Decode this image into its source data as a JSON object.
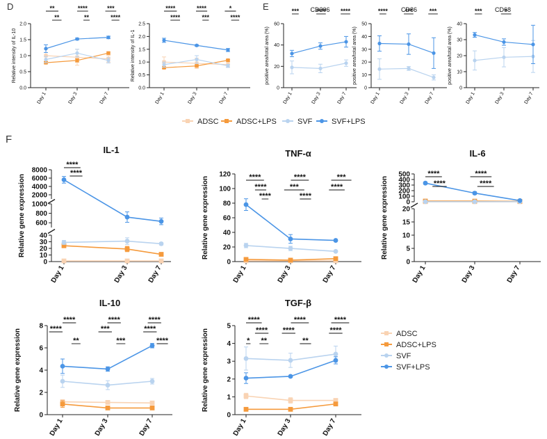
{
  "figure": {
    "panel_labels": {
      "D": "D",
      "E": "E",
      "F": "F"
    },
    "legend_top": {
      "items": [
        {
          "label": "ADSC",
          "color": "#f9d3b3"
        },
        {
          "label": "ADSC+LPS",
          "color": "#f59a3c"
        },
        {
          "label": "SVF",
          "color": "#b9d3ef"
        },
        {
          "label": "SVF+LPS",
          "color": "#4b95e6"
        }
      ]
    },
    "legend_right": {
      "items": [
        {
          "label": "ADSC",
          "color": "#f9d3b3"
        },
        {
          "label": "ADSC+LPS",
          "color": "#f59a3c"
        },
        {
          "label": "SVF",
          "color": "#b9d3ef"
        },
        {
          "label": "SVF+LPS",
          "color": "#4b95e6"
        }
      ]
    }
  },
  "chart_data": [
    {
      "id": "d1",
      "type": "line",
      "panel": "D",
      "title": "",
      "ylabel": "Relative intensity of IL-10",
      "xlabel": "",
      "categories": [
        "Day 1",
        "Day 3",
        "Day 7"
      ],
      "ylim": [
        0,
        2.0
      ],
      "yticks": [
        "0.0",
        "0.5",
        "1.0",
        "1.5",
        "2.0"
      ],
      "series": [
        {
          "name": "ADSC",
          "color": "#f9d3b3",
          "values": [
            1.0,
            0.95,
            0.9
          ],
          "errors": [
            0.2,
            0.25,
            0.1
          ]
        },
        {
          "name": "ADSC+LPS",
          "color": "#f59a3c",
          "values": [
            0.78,
            0.85,
            1.08
          ],
          "errors": [
            0.03,
            0.05,
            0.03
          ]
        },
        {
          "name": "SVF",
          "color": "#b9d3ef",
          "values": [
            0.88,
            1.08,
            0.85
          ],
          "errors": [
            0.1,
            0.12,
            0.08
          ]
        },
        {
          "name": "SVF+LPS",
          "color": "#4b95e6",
          "values": [
            1.22,
            1.52,
            1.57
          ],
          "errors": [
            0.12,
            0.03,
            0.04
          ]
        }
      ],
      "sig_labels": [
        "**",
        "**",
        "****",
        "**",
        "***",
        "****"
      ]
    },
    {
      "id": "d2",
      "type": "line",
      "panel": "D",
      "title": "",
      "ylabel": "Relative intensity of IL-1",
      "xlabel": "",
      "categories": [
        "Day 1",
        "Day 3",
        "Day 7"
      ],
      "ylim": [
        0,
        2.5
      ],
      "yticks": [
        "0.0",
        "0.5",
        "1.0",
        "1.5",
        "2.0",
        "2.5"
      ],
      "series": [
        {
          "name": "ADSC",
          "color": "#f9d3b3",
          "values": [
            1.0,
            0.95,
            0.9
          ],
          "errors": [
            0.2,
            0.2,
            0.1
          ]
        },
        {
          "name": "ADSC+LPS",
          "color": "#f59a3c",
          "values": [
            0.78,
            0.85,
            1.07
          ],
          "errors": [
            0.03,
            0.04,
            0.03
          ]
        },
        {
          "name": "SVF",
          "color": "#b9d3ef",
          "values": [
            0.9,
            1.1,
            0.85
          ],
          "errors": [
            0.1,
            0.15,
            0.06
          ]
        },
        {
          "name": "SVF+LPS",
          "color": "#4b95e6",
          "values": [
            1.85,
            1.65,
            1.47
          ],
          "errors": [
            0.08,
            0.03,
            0.06
          ]
        }
      ],
      "sig_labels": [
        "****",
        "****",
        "****",
        "***",
        "*",
        "****"
      ]
    },
    {
      "id": "e1",
      "type": "line",
      "panel": "E",
      "title": "CD206",
      "ylabel": "positive area/total area (%)",
      "xlabel": "",
      "categories": [
        "Day 1",
        "Day 3",
        "Day 7"
      ],
      "ylim": [
        0,
        60
      ],
      "yticks": [
        "0",
        "20",
        "40",
        "60"
      ],
      "series": [
        {
          "name": "SVF",
          "color": "#b9d3ef",
          "values": [
            19,
            18,
            23
          ],
          "errors": [
            6,
            4,
            3
          ]
        },
        {
          "name": "SVF+LPS",
          "color": "#4b95e6",
          "values": [
            32,
            39,
            43
          ],
          "errors": [
            3,
            3,
            5
          ]
        }
      ],
      "sig_labels": [
        "***",
        "****",
        "****"
      ]
    },
    {
      "id": "e2",
      "type": "line",
      "panel": "E",
      "title": "CD86",
      "ylabel": "positive area/total area (%)",
      "xlabel": "",
      "categories": [
        "Day 1",
        "Day 3",
        "Day 7"
      ],
      "ylim": [
        0,
        50
      ],
      "yticks": [
        "0",
        "10",
        "20",
        "30",
        "40",
        "50"
      ],
      "series": [
        {
          "name": "SVF",
          "color": "#b9d3ef",
          "values": [
            14.5,
            15,
            8
          ],
          "errors": [
            8,
            1.5,
            2
          ]
        },
        {
          "name": "SVF+LPS",
          "color": "#4b95e6",
          "values": [
            34.5,
            34,
            27
          ],
          "errors": [
            6,
            8,
            12
          ]
        }
      ],
      "sig_labels": [
        "****",
        "***",
        "***"
      ]
    },
    {
      "id": "e3",
      "type": "line",
      "panel": "E",
      "title": "CD68",
      "ylabel": "positive area/total area (%)",
      "xlabel": "",
      "categories": [
        "Day 1",
        "Day 3",
        "Day 7"
      ],
      "ylim": [
        0,
        40
      ],
      "yticks": [
        "0",
        "10",
        "20",
        "30",
        "40"
      ],
      "series": [
        {
          "name": "SVF",
          "color": "#b9d3ef",
          "values": [
            17,
            19,
            19.5
          ],
          "errors": [
            6,
            6,
            10
          ]
        },
        {
          "name": "SVF+LPS",
          "color": "#4b95e6",
          "values": [
            33,
            28.5,
            27
          ],
          "errors": [
            1.5,
            2,
            12
          ]
        }
      ],
      "sig_labels": [
        "***",
        "*"
      ]
    },
    {
      "id": "f1",
      "type": "line",
      "panel": "F",
      "title": "IL-1",
      "ylabel": "Relative gene expression",
      "xlabel": "",
      "categories": [
        "Day 1",
        "Day 3",
        "Day 7"
      ],
      "broken_axis": true,
      "segments": [
        {
          "ylim": [
            0,
            40
          ],
          "yticks": [
            "0",
            "10",
            "20",
            "30",
            "40"
          ]
        },
        {
          "ylim": [
            500,
            1000
          ],
          "yticks": [
            "600",
            "800",
            "1000"
          ]
        },
        {
          "ylim": [
            1000,
            8000
          ],
          "yticks": [
            "2000",
            "4000",
            "6000",
            "8000"
          ]
        }
      ],
      "series": [
        {
          "name": "ADSC",
          "color": "#f9d3b3",
          "values": [
            1,
            1,
            1
          ],
          "errors": [
            0,
            0,
            0
          ]
        },
        {
          "name": "ADSC+LPS",
          "color": "#f59a3c",
          "values": [
            24,
            19,
            11
          ],
          "errors": [
            3,
            4,
            1
          ]
        },
        {
          "name": "SVF",
          "color": "#b9d3ef",
          "values": [
            29,
            31,
            27
          ],
          "errors": [
            3,
            5,
            2
          ]
        },
        {
          "name": "SVF+LPS",
          "color": "#4b95e6",
          "values": [
            5600,
            720,
            630
          ],
          "errors": [
            800,
            110,
            70
          ]
        }
      ],
      "sig_labels": [
        "****",
        "****"
      ]
    },
    {
      "id": "f2",
      "type": "line",
      "panel": "F",
      "title": "TNF-α",
      "ylabel": "Relative gene expression",
      "xlabel": "",
      "categories": [
        "Day 1",
        "Day 3",
        "Day 7"
      ],
      "ylim": [
        0,
        120
      ],
      "yticks": [
        "0",
        "20",
        "40",
        "60",
        "80",
        "100",
        "120"
      ],
      "series": [
        {
          "name": "ADSC",
          "color": "#f9d3b3",
          "values": [
            1,
            1,
            1
          ],
          "errors": [
            0,
            0,
            0
          ]
        },
        {
          "name": "ADSC+LPS",
          "color": "#f59a3c",
          "values": [
            3,
            2,
            4
          ],
          "errors": [
            0.5,
            0.5,
            1
          ]
        },
        {
          "name": "SVF",
          "color": "#b9d3ef",
          "values": [
            22,
            18,
            14
          ],
          "errors": [
            3,
            3,
            1
          ]
        },
        {
          "name": "SVF+LPS",
          "color": "#4b95e6",
          "values": [
            78,
            31,
            29
          ],
          "errors": [
            8,
            6,
            1
          ]
        }
      ],
      "sig_labels": [
        "****",
        "****",
        "****",
        "****",
        "***",
        "****",
        "***",
        "****"
      ]
    },
    {
      "id": "f3",
      "type": "line",
      "panel": "F",
      "title": "IL-6",
      "ylabel": "Relative gene expression",
      "xlabel": "",
      "categories": [
        "Day 1",
        "Day 3",
        "Day 7"
      ],
      "broken_axis": true,
      "segments": [
        {
          "ylim": [
            0,
            20
          ],
          "yticks": [
            "0",
            "5",
            "10",
            "15",
            "20"
          ]
        },
        {
          "ylim": [
            0,
            500
          ],
          "yticks": [
            "0",
            "100",
            "200",
            "300",
            "400",
            "500"
          ]
        }
      ],
      "series": [
        {
          "name": "ADSC",
          "color": "#f9d3b3",
          "values": [
            1,
            1,
            1
          ],
          "errors": [
            0,
            0,
            0
          ]
        },
        {
          "name": "ADSC+LPS",
          "color": "#f59a3c",
          "values": [
            12.5,
            11.5,
            6.5
          ],
          "errors": [
            2.5,
            1.2,
            1.5
          ]
        },
        {
          "name": "SVF",
          "color": "#b9d3ef",
          "values": [
            1.5,
            1.5,
            1.5
          ],
          "errors": [
            0.3,
            0.3,
            0.3
          ]
        },
        {
          "name": "SVF+LPS",
          "color": "#4b95e6",
          "values": [
            335,
            155,
            21
          ],
          "errors": [
            20,
            25,
            2
          ]
        }
      ],
      "sig_labels": [
        "****",
        "****",
        "****",
        "****"
      ]
    },
    {
      "id": "f4",
      "type": "line",
      "panel": "F",
      "title": "IL-10",
      "ylabel": "Relative gene expression",
      "xlabel": "",
      "categories": [
        "Day 1",
        "Day 3",
        "Day 7"
      ],
      "ylim": [
        0,
        8
      ],
      "yticks": [
        "0",
        "2",
        "4",
        "6",
        "8"
      ],
      "series": [
        {
          "name": "ADSC",
          "color": "#f9d3b3",
          "values": [
            1.15,
            1.1,
            1.05
          ],
          "errors": [
            0.2,
            0.1,
            0.1
          ]
        },
        {
          "name": "ADSC+LPS",
          "color": "#f59a3c",
          "values": [
            0.95,
            0.6,
            0.6
          ],
          "errors": [
            0.3,
            0.1,
            0.1
          ]
        },
        {
          "name": "SVF",
          "color": "#b9d3ef",
          "values": [
            3.0,
            2.65,
            3.0
          ],
          "errors": [
            0.55,
            0.4,
            0.25
          ]
        },
        {
          "name": "SVF+LPS",
          "color": "#4b95e6",
          "values": [
            4.35,
            4.1,
            6.2
          ],
          "errors": [
            0.65,
            0.2,
            0.2
          ]
        }
      ],
      "sig_labels": [
        "****",
        "****",
        "**",
        "****",
        "***",
        "***",
        "****",
        "****",
        "****"
      ]
    },
    {
      "id": "f5",
      "type": "line",
      "panel": "F",
      "title": "TGF-β",
      "ylabel": "Relative gene expression",
      "xlabel": "",
      "categories": [
        "Day 1",
        "Day 3",
        "Day 7"
      ],
      "ylim": [
        0,
        5
      ],
      "yticks": [
        "0",
        "1",
        "2",
        "3",
        "4",
        "5"
      ],
      "series": [
        {
          "name": "ADSC",
          "color": "#f9d3b3",
          "values": [
            1.05,
            0.8,
            0.8
          ],
          "errors": [
            0.15,
            0.15,
            0.1
          ]
        },
        {
          "name": "ADSC+LPS",
          "color": "#f59a3c",
          "values": [
            0.3,
            0.3,
            0.6
          ],
          "errors": [
            0.05,
            0.05,
            0.05
          ]
        },
        {
          "name": "SVF",
          "color": "#b9d3ef",
          "values": [
            3.15,
            3.05,
            3.4
          ],
          "errors": [
            0.65,
            0.4,
            0.45
          ]
        },
        {
          "name": "SVF+LPS",
          "color": "#4b95e6",
          "values": [
            2.05,
            2.15,
            3.05
          ],
          "errors": [
            0.3,
            0.05,
            0.2
          ]
        }
      ],
      "sig_labels": [
        "****",
        "****",
        "*",
        "**",
        "****",
        "****",
        "**",
        "****",
        "****"
      ]
    }
  ]
}
